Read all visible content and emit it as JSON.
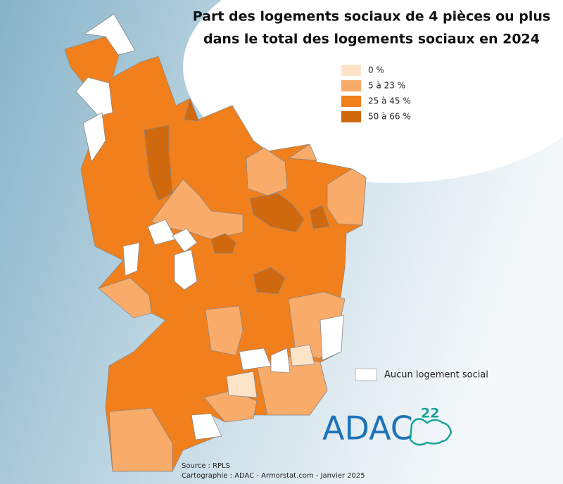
{
  "title": [
    "Part des logements sociaux de 4 pièces ou plus",
    "dans le total des logements sociaux en 2024"
  ],
  "legend": [
    {
      "label": "0 %",
      "color": "#fde3c8"
    },
    {
      "label": "5 à 23 %",
      "color": "#f9ab6a"
    },
    {
      "label": "25 à 45 %",
      "color": "#f07f1c"
    },
    {
      "label": "50 à 66 %",
      "color": "#d0680d"
    }
  ],
  "no_housing": {
    "label": "Aucun logement social",
    "color": "#ffffff"
  },
  "source": "Source : RPLS",
  "credits": "Cartographie : ADAC - Armorstat.com - Janvier 2025",
  "logo": {
    "text": "ADAC",
    "superscript": "22"
  }
}
